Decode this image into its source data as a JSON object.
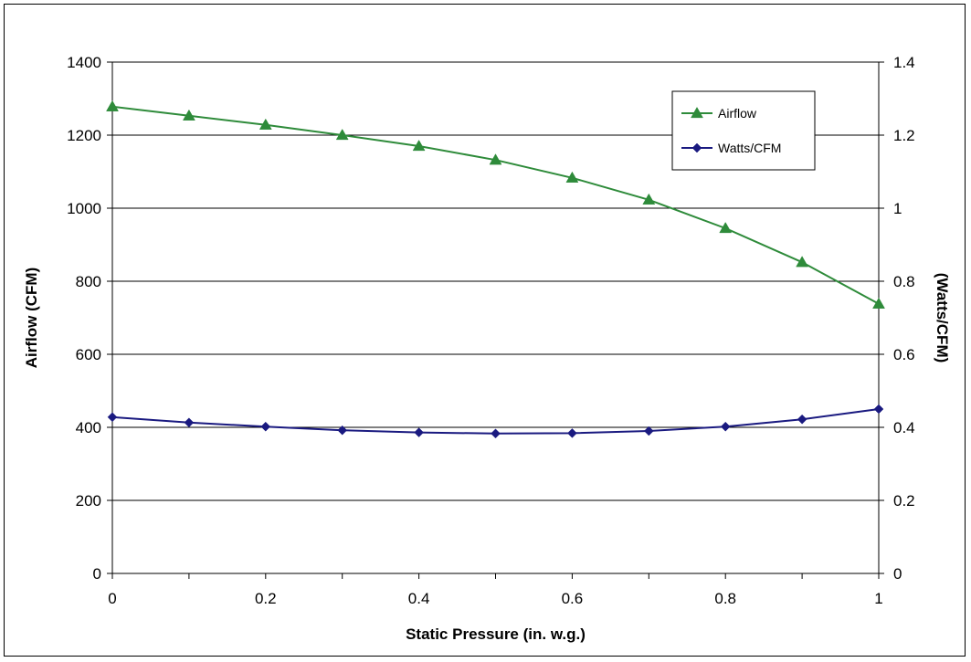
{
  "chart_data": {
    "type": "line",
    "x": [
      0,
      0.1,
      0.2,
      0.3,
      0.4,
      0.5,
      0.6,
      0.7,
      0.8,
      0.9,
      1.0
    ],
    "xlabel": "Static Pressure (in. w.g.)",
    "ylabel": "Airflow (CFM)",
    "y2label": "(Watts/CFM)",
    "xlim": [
      0,
      1
    ],
    "ylim": [
      0,
      1400
    ],
    "y2lim": [
      0,
      1.4
    ],
    "xticks": [
      "0",
      "0.2",
      "0.4",
      "0.6",
      "0.8",
      "1"
    ],
    "yticks": [
      "0",
      "200",
      "400",
      "600",
      "800",
      "1000",
      "1200",
      "1400"
    ],
    "y2ticks": [
      "0",
      "0.2",
      "0.4",
      "0.6",
      "0.8",
      "1",
      "1.2",
      "1.4"
    ],
    "grid": "horizontal",
    "legend_position": "top-right",
    "series": [
      {
        "name": "Airflow",
        "axis": "left",
        "color": "#2e8b3a",
        "marker": "triangle",
        "values": [
          1278,
          1253,
          1228,
          1200,
          1170,
          1132,
          1083,
          1023,
          945,
          852,
          738
        ]
      },
      {
        "name": "Watts/CFM",
        "axis": "right",
        "color": "#1a1a80",
        "marker": "diamond",
        "values": [
          0.428,
          0.413,
          0.402,
          0.392,
          0.386,
          0.383,
          0.384,
          0.39,
          0.402,
          0.422,
          0.45
        ]
      }
    ]
  }
}
